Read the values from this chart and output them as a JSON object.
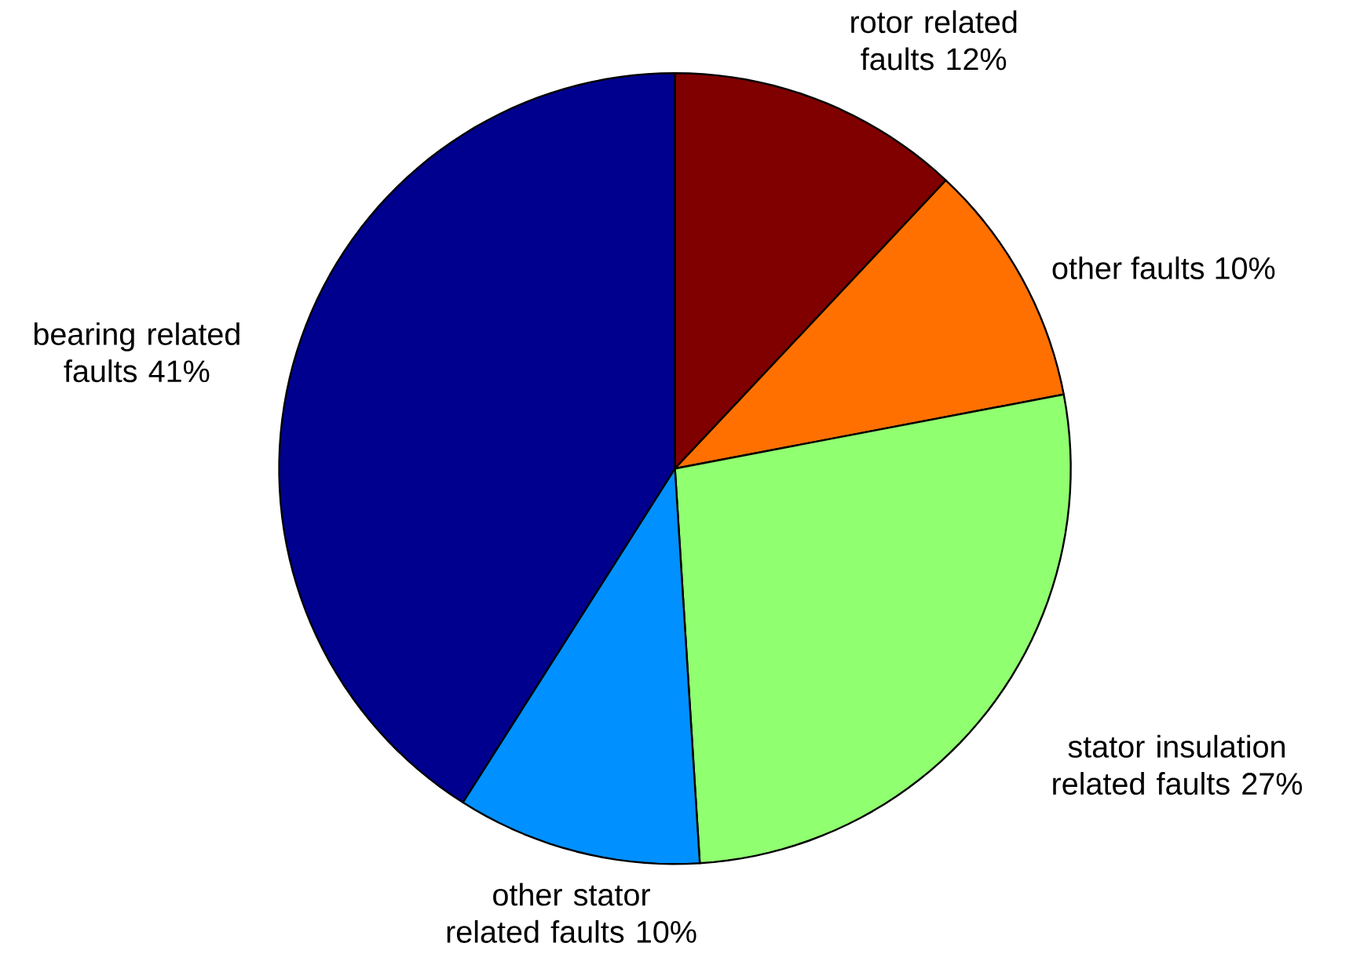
{
  "chart_data": {
    "type": "pie",
    "categories": [
      "rotor related faults",
      "other faults",
      "stator insulation related faults",
      "other stator related faults",
      "bearing related faults"
    ],
    "values": [
      12,
      10,
      27,
      10,
      41
    ],
    "value_labels": [
      "12%",
      "10%",
      "27%",
      "10%",
      "41%"
    ],
    "colors": [
      "#800000",
      "#ff7000",
      "#90ff70",
      "#0090ff",
      "#00008f"
    ]
  }
}
